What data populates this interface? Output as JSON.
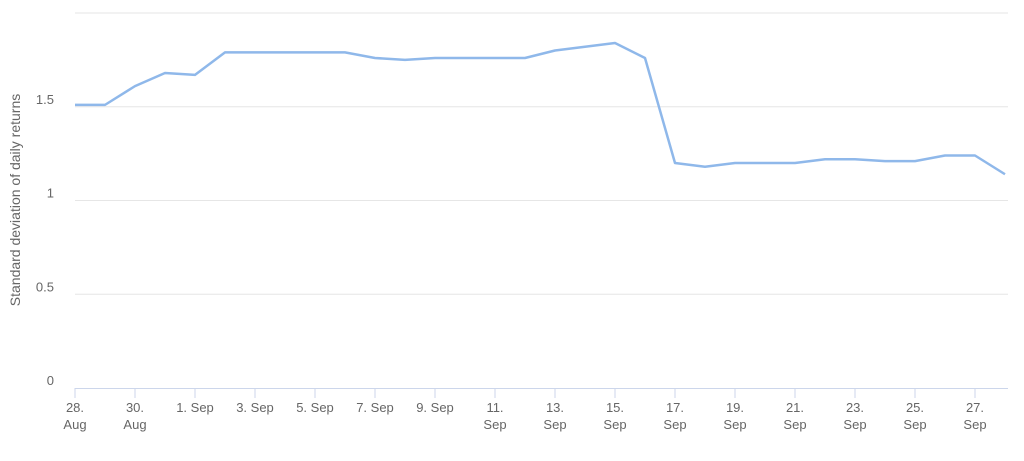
{
  "chart_data": {
    "type": "line",
    "y_axis_label": "Standard deviation of daily returns",
    "categories": [
      "28. Aug",
      null,
      "30. Aug",
      null,
      "1. Sep",
      null,
      "3. Sep",
      null,
      "5. Sep",
      null,
      "7. Sep",
      null,
      "9. Sep",
      null,
      "11. Sep",
      null,
      "13. Sep",
      null,
      "15. Sep",
      null,
      "17. Sep",
      null,
      "19. Sep",
      null,
      "21. Sep",
      null,
      "23. Sep",
      null,
      "25. Sep",
      null,
      "27. Sep",
      null
    ],
    "series": [
      {
        "color": "#8fb8ea",
        "values": [
          1.51,
          1.51,
          1.61,
          1.68,
          1.67,
          1.79,
          1.79,
          1.79,
          1.79,
          1.79,
          1.76,
          1.75,
          1.76,
          1.76,
          1.76,
          1.76,
          1.8,
          1.82,
          1.84,
          1.76,
          1.2,
          1.18,
          1.2,
          1.2,
          1.2,
          1.22,
          1.22,
          1.21,
          1.21,
          1.24,
          1.24,
          1.14
        ]
      }
    ],
    "ylim": [
      0,
      2
    ],
    "yticks": [
      0,
      0.5,
      1,
      1.5
    ],
    "grid": true
  }
}
